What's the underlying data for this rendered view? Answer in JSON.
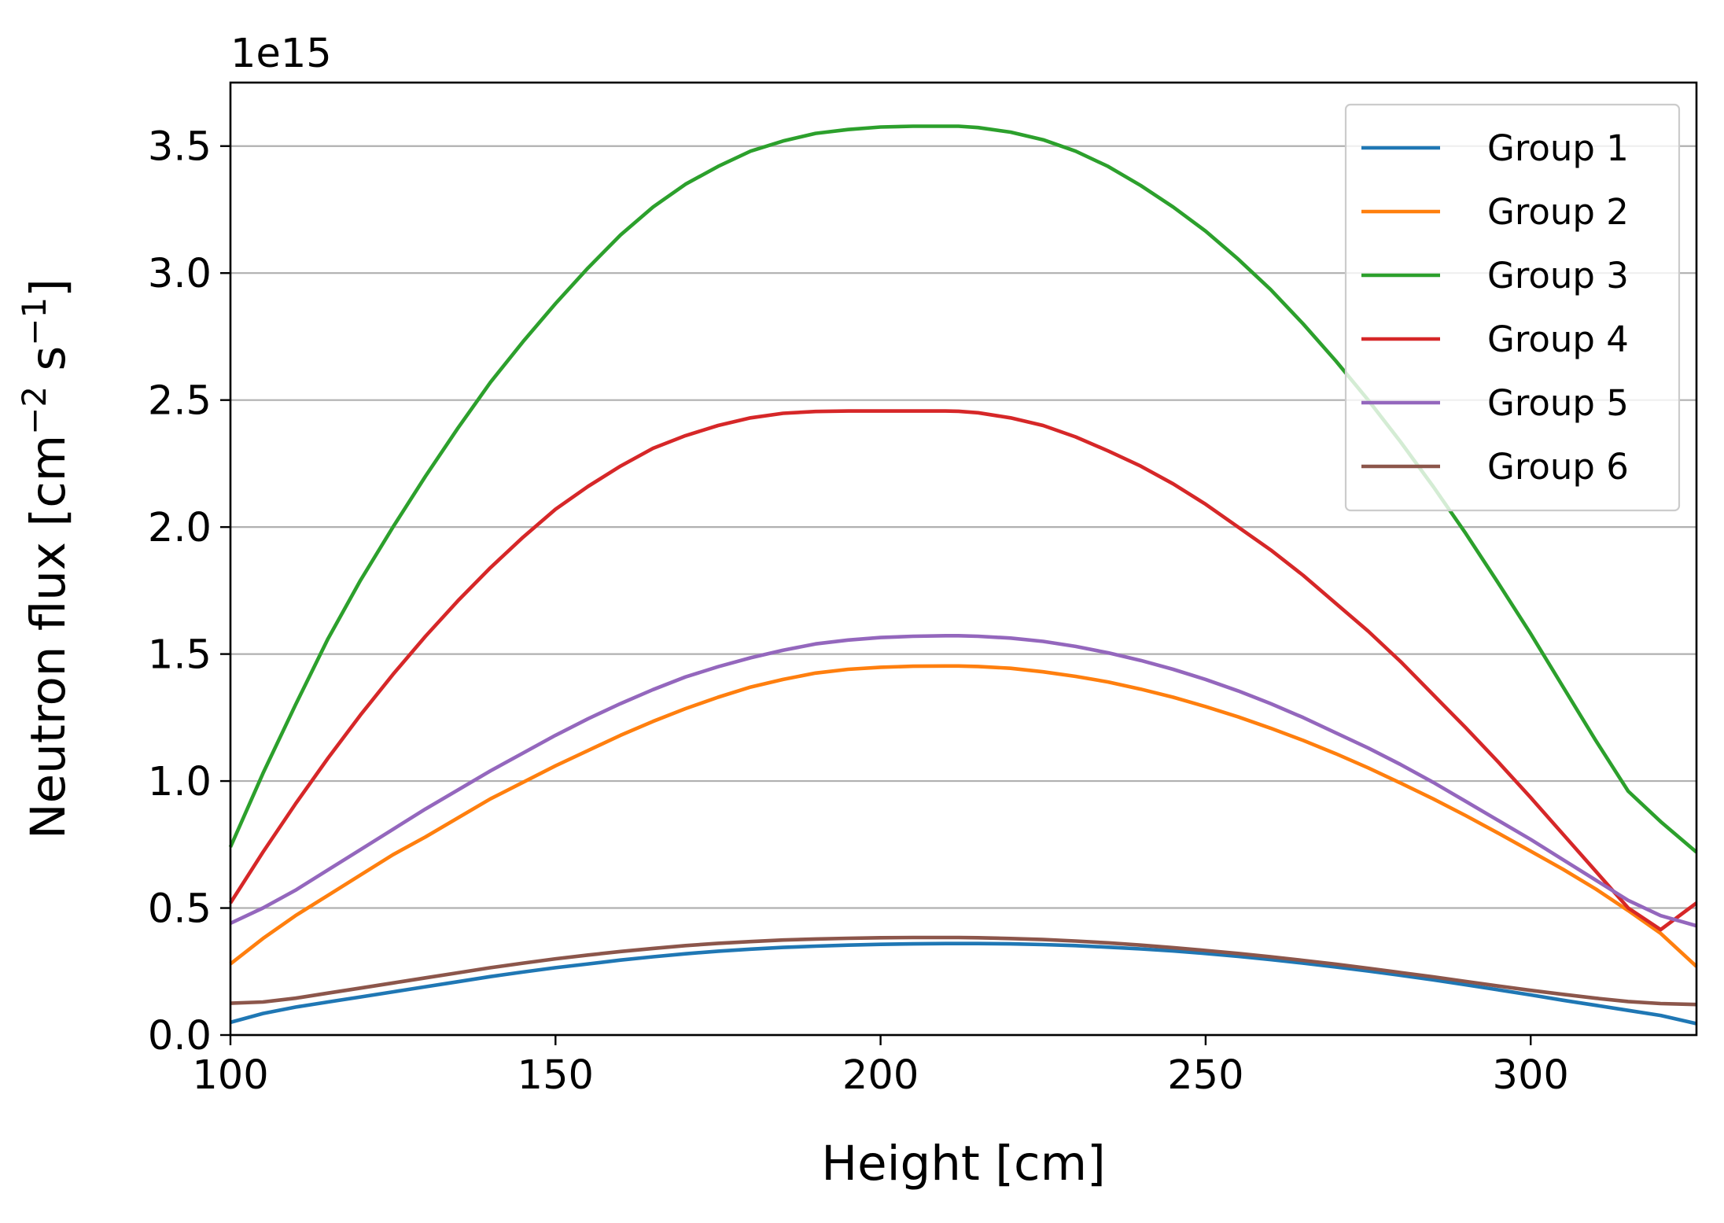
{
  "chart_data": {
    "type": "line",
    "title": "",
    "xlabel": "Height [cm]",
    "ylabel": {
      "prefix": "Neutron flux [cm",
      "sup1": "−2",
      "mid": " s",
      "sup2": "−1",
      "suffix": "]"
    },
    "y_offset_label": "1e15",
    "y_scale": 1000000000000000.0,
    "xlim": [
      100,
      325.5
    ],
    "ylim": [
      0,
      3.75
    ],
    "xticks": [
      100,
      150,
      200,
      250,
      300
    ],
    "xtick_labels": [
      "100",
      "150",
      "200",
      "250",
      "300"
    ],
    "yticks": [
      0,
      0.5,
      1.0,
      1.5,
      2.0,
      2.5,
      3.0,
      3.5
    ],
    "ytick_labels": [
      "0.0",
      "0.5",
      "1.0",
      "1.5",
      "2.0",
      "2.5",
      "3.0",
      "3.5"
    ],
    "grid": "horizontal",
    "legend_position": "top-right",
    "x": [
      100,
      105,
      110,
      115,
      120,
      125,
      130,
      135,
      140,
      145,
      150,
      155,
      160,
      165,
      170,
      175,
      180,
      185,
      190,
      195,
      200,
      205,
      210,
      212,
      215,
      220,
      225,
      230,
      235,
      240,
      245,
      250,
      255,
      260,
      265,
      270,
      275,
      280,
      285,
      290,
      295,
      300,
      305,
      310,
      315,
      320,
      325.5
    ],
    "series": [
      {
        "name": "Group 1",
        "color": "#1f77b4",
        "values": [
          0.05,
          0.085,
          0.11,
          0.13,
          0.15,
          0.17,
          0.19,
          0.21,
          0.23,
          0.248,
          0.265,
          0.28,
          0.295,
          0.308,
          0.32,
          0.33,
          0.338,
          0.345,
          0.35,
          0.354,
          0.357,
          0.359,
          0.36,
          0.36,
          0.36,
          0.359,
          0.356,
          0.352,
          0.346,
          0.339,
          0.331,
          0.321,
          0.31,
          0.297,
          0.283,
          0.268,
          0.252,
          0.235,
          0.217,
          0.198,
          0.178,
          0.158,
          0.137,
          0.117,
          0.097,
          0.077,
          0.045
        ]
      },
      {
        "name": "Group 2",
        "color": "#ff7f0e",
        "values": [
          0.28,
          0.38,
          0.47,
          0.55,
          0.63,
          0.71,
          0.78,
          0.855,
          0.93,
          0.995,
          1.06,
          1.12,
          1.18,
          1.235,
          1.285,
          1.33,
          1.37,
          1.4,
          1.425,
          1.44,
          1.448,
          1.452,
          1.453,
          1.453,
          1.451,
          1.444,
          1.43,
          1.412,
          1.39,
          1.362,
          1.33,
          1.293,
          1.253,
          1.208,
          1.16,
          1.108,
          1.052,
          0.992,
          0.93,
          0.864,
          0.795,
          0.724,
          0.652,
          0.575,
          0.49,
          0.4,
          0.27
        ]
      },
      {
        "name": "Group 3",
        "color": "#2ca02c",
        "values": [
          0.74,
          1.03,
          1.3,
          1.56,
          1.79,
          2.0,
          2.2,
          2.39,
          2.57,
          2.73,
          2.88,
          3.02,
          3.15,
          3.26,
          3.35,
          3.42,
          3.48,
          3.52,
          3.55,
          3.565,
          3.575,
          3.578,
          3.578,
          3.578,
          3.573,
          3.555,
          3.525,
          3.48,
          3.42,
          3.345,
          3.26,
          3.165,
          3.055,
          2.935,
          2.8,
          2.655,
          2.5,
          2.335,
          2.16,
          1.975,
          1.78,
          1.58,
          1.37,
          1.16,
          0.96,
          0.84,
          0.72
        ]
      },
      {
        "name": "Group 4",
        "color": "#d62728",
        "values": [
          0.52,
          0.72,
          0.91,
          1.09,
          1.26,
          1.42,
          1.57,
          1.71,
          1.84,
          1.96,
          2.07,
          2.16,
          2.24,
          2.31,
          2.36,
          2.4,
          2.43,
          2.448,
          2.455,
          2.457,
          2.457,
          2.457,
          2.457,
          2.456,
          2.45,
          2.43,
          2.4,
          2.355,
          2.3,
          2.24,
          2.17,
          2.09,
          2.0,
          1.91,
          1.81,
          1.7,
          1.59,
          1.47,
          1.34,
          1.21,
          1.075,
          0.935,
          0.79,
          0.645,
          0.5,
          0.415,
          0.52
        ]
      },
      {
        "name": "Group 5",
        "color": "#9467bd",
        "values": [
          0.44,
          0.5,
          0.57,
          0.65,
          0.73,
          0.81,
          0.89,
          0.965,
          1.04,
          1.11,
          1.18,
          1.245,
          1.305,
          1.36,
          1.41,
          1.45,
          1.485,
          1.515,
          1.54,
          1.555,
          1.565,
          1.57,
          1.572,
          1.572,
          1.57,
          1.563,
          1.55,
          1.53,
          1.505,
          1.475,
          1.44,
          1.4,
          1.355,
          1.305,
          1.25,
          1.19,
          1.13,
          1.065,
          0.995,
          0.92,
          0.845,
          0.77,
          0.69,
          0.61,
          0.53,
          0.47,
          0.43
        ]
      },
      {
        "name": "Group 6",
        "color": "#8c564b",
        "values": [
          0.125,
          0.13,
          0.145,
          0.165,
          0.185,
          0.205,
          0.225,
          0.245,
          0.265,
          0.283,
          0.3,
          0.315,
          0.329,
          0.341,
          0.352,
          0.361,
          0.368,
          0.374,
          0.378,
          0.381,
          0.383,
          0.384,
          0.384,
          0.384,
          0.383,
          0.38,
          0.376,
          0.37,
          0.363,
          0.354,
          0.344,
          0.333,
          0.321,
          0.308,
          0.294,
          0.279,
          0.263,
          0.246,
          0.229,
          0.211,
          0.193,
          0.176,
          0.16,
          0.145,
          0.132,
          0.124,
          0.12
        ]
      }
    ]
  }
}
